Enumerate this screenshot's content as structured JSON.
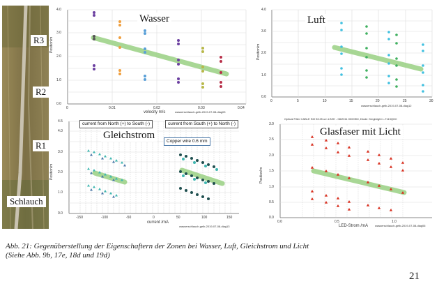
{
  "photo": {
    "labels": [
      "R3",
      "R2",
      "R1",
      "Schlauch"
    ],
    "colors": {
      "grass": "#7d7046",
      "hose": "#c9c2b0"
    }
  },
  "panels": [
    {
      "id": "wasser",
      "title": "Wasser",
      "x_label": "velocity m/s",
      "y_label": "Position/m",
      "x_ticks": [
        "0",
        "0.01",
        "0.02",
        "0.03",
        "0.04"
      ],
      "y_ticks": [
        "0.0",
        "0.5",
        "1.0",
        "1.5",
        "2.0",
        "2.5",
        "3.0",
        "3.5",
        "4.0"
      ],
      "footer": "wasserschlauch-gelb-2019-07-08-diag03"
    },
    {
      "id": "luft",
      "title": "Luft",
      "x_label": "",
      "y_label": "Position/m",
      "x_ticks": [
        "0",
        "5",
        "10",
        "15",
        "20",
        "25",
        "30"
      ],
      "y_ticks": [
        "0.0",
        "0.5",
        "1.0",
        "1.5",
        "2.0",
        "2.5",
        "3.0",
        "3.5",
        "4.0"
      ],
      "footer": "wasserschlauch-gelb-2019-07-08-diag12"
    },
    {
      "id": "gleichstrom",
      "title": "Gleichstrom",
      "x_label": "current /mA",
      "y_label": "Position/m",
      "x_ticks": [
        "-150",
        "-100",
        "-50",
        "0",
        "50",
        "100",
        "150"
      ],
      "y_ticks": [
        "0.0",
        "0.5",
        "1.0",
        "1.5",
        "2.0",
        "2.5",
        "3.0",
        "3.5",
        "4.0",
        "4.5"
      ],
      "legend_left": "current from North (+) to South (-)",
      "legend_right": "current from South (+) to North (-)",
      "wire_note": "Copper wire 0.6 mm",
      "footer": "wasserschlauch-gelb-2019-07-08-diag13"
    },
    {
      "id": "glasfaser",
      "title": "Glasfaser mit Licht",
      "header": "Optical Filter CABLE SM 9/125 um LSZH - 08/2011 0000SM, Diode: Kingbright L-7113QGC",
      "x_label": "LED-Strom /mA",
      "y_label": "Position/m",
      "x_ticks": [
        "0.0",
        "0.5",
        "1.0"
      ],
      "y_ticks": [
        "0.0",
        "0.5",
        "1.0",
        "1.5",
        "2.0",
        "2.5",
        "3.0"
      ],
      "footer": "wasserschlauch-gelb-2019-07-08-diag06"
    }
  ],
  "caption": {
    "line1": "Abb. 21: Gegenüberstellung der Eigenschaftern der Zonen bei Wasser, Luft, Gleichstrom und Licht",
    "line2": "(Siehe Abb. 9b, 17e, 18d und 19d)"
  },
  "page_number": "21",
  "colors": {
    "band": "#9fd38a",
    "grid": "#dcdcdc",
    "axis": "#888888",
    "purple": "#6b3fa0",
    "orange": "#f0a040",
    "blue": "#5aa0d8",
    "olive": "#b8b84a",
    "crimson": "#b8304a",
    "teal": "#3fb6b0",
    "cyan": "#40c0e0",
    "green": "#40b060",
    "steel": "#4a78a8",
    "darkteal": "#1f4f4f",
    "red": "#d83020"
  }
}
